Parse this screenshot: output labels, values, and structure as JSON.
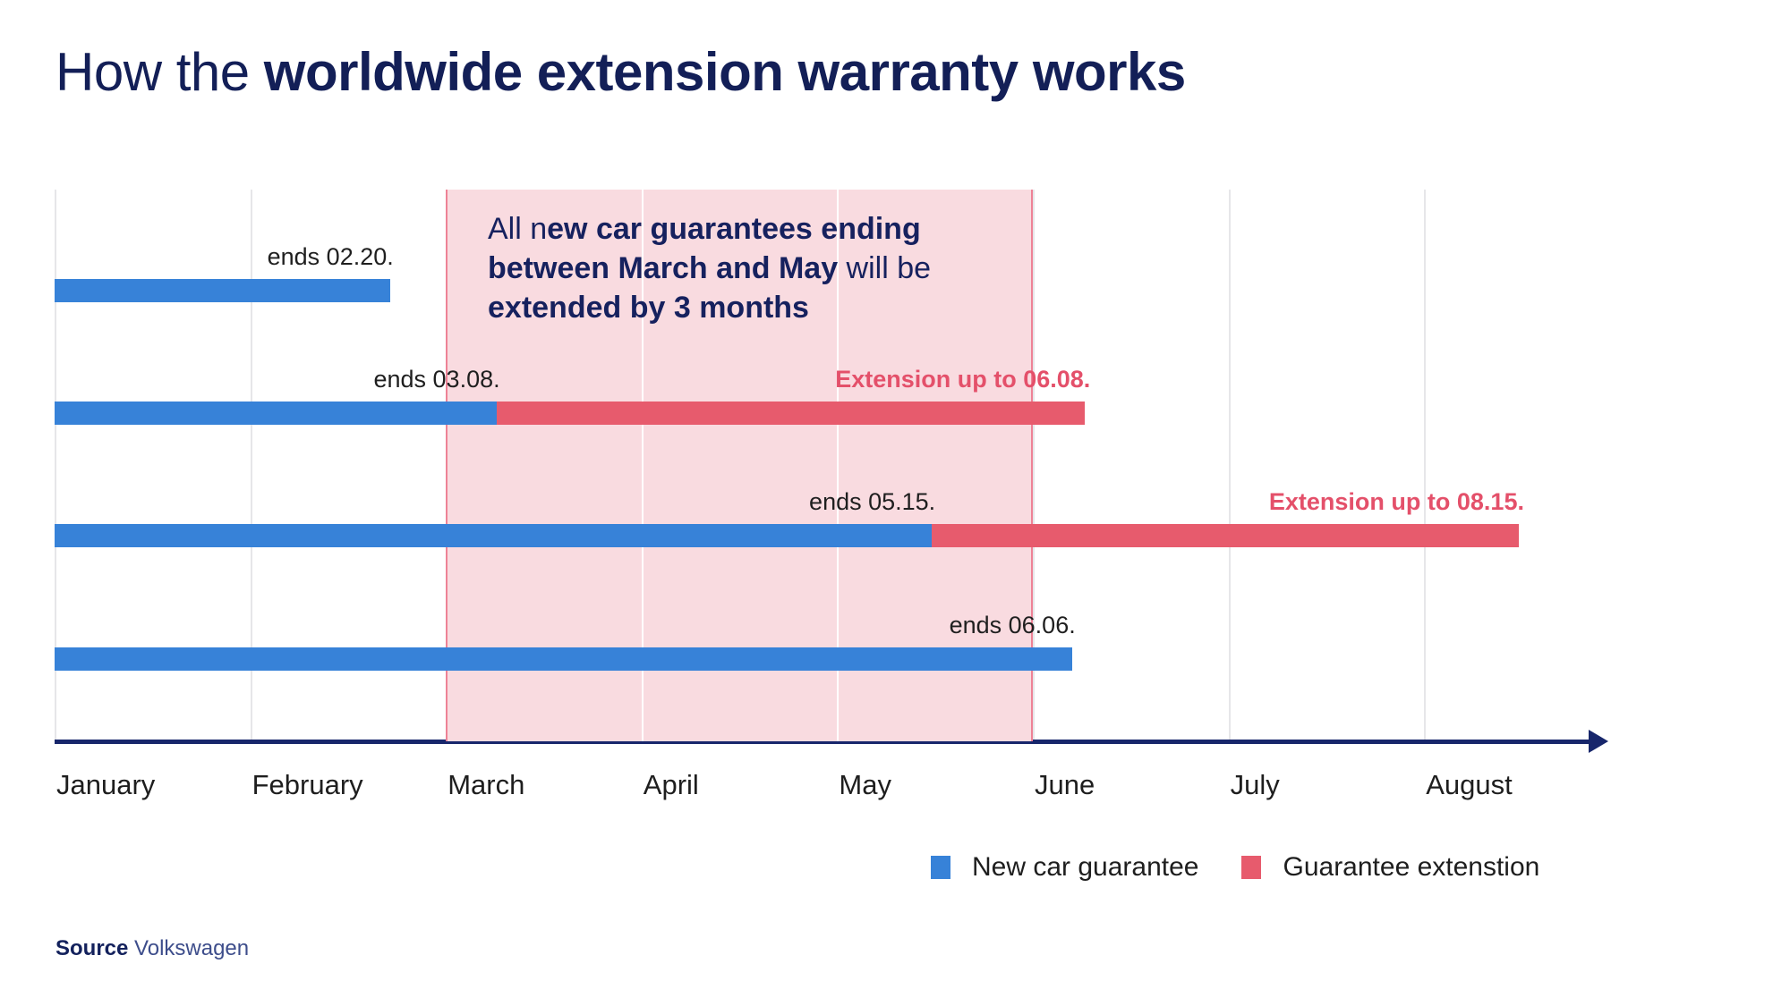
{
  "title": {
    "segments": [
      {
        "text": "How the ",
        "bold": false
      },
      {
        "text": "worldwide extension warranty works",
        "bold": true
      }
    ]
  },
  "annotation": {
    "lines": [
      [
        {
          "text": "All n",
          "bold": false
        },
        {
          "text": "ew car guarantees ending",
          "bold": true
        }
      ],
      [
        {
          "text": "between March and May",
          "bold": true
        },
        {
          "text": " will be",
          "bold": false
        }
      ],
      [
        {
          "text": "extended by 3 months",
          "bold": true
        }
      ]
    ]
  },
  "chart_data": {
    "type": "gantt",
    "title": "How the worldwide extension warranty works",
    "months": [
      "January",
      "February",
      "March",
      "April",
      "May",
      "June",
      "July",
      "August"
    ],
    "days_in_month": [
      31,
      28,
      31,
      30,
      31,
      30,
      31,
      31
    ],
    "highlight": {
      "from_month": "March",
      "to_month": "May",
      "note": "All new car guarantees ending between March and May will be extended by 3 months"
    },
    "rows": [
      {
        "name": "guarantee-1",
        "end_date": "02.20",
        "end_label": "ends 02.20.",
        "extension_date": null,
        "extension_label": null
      },
      {
        "name": "guarantee-2",
        "end_date": "03.08",
        "end_label": "ends 03.08.",
        "extension_date": "06.08",
        "extension_label": "Extension up to 06.08."
      },
      {
        "name": "guarantee-3",
        "end_date": "05.15",
        "end_label": "ends 05.15.",
        "extension_date": "08.15",
        "extension_label": "Extension up to 08.15."
      },
      {
        "name": "guarantee-4",
        "end_date": "06.06",
        "end_label": "ends 06.06.",
        "extension_date": null,
        "extension_label": null
      }
    ],
    "legend": [
      {
        "label": "New car guarantee",
        "color": "#3782d8"
      },
      {
        "label": "Guarantee extenstion",
        "color": "#e75b6d"
      }
    ],
    "axis": {
      "orientation": "horizontal",
      "arrow": true
    }
  },
  "colors": {
    "bar_blue": "#3782d8",
    "bar_red": "#e75b6d",
    "highlight_pink": "#f9dbe0",
    "highlight_border": "#ee8296",
    "gridline": "#e6e6e9",
    "axis_navy": "#17266b",
    "title_navy": "#131f57",
    "annotation_navy": "#16215e",
    "label_dark": "#1f1f1f",
    "extension_text": "#e4506a"
  },
  "source": {
    "segments": [
      {
        "text": "Source",
        "bold": true
      },
      {
        "text": " Volkswagen",
        "bold": false
      }
    ]
  }
}
